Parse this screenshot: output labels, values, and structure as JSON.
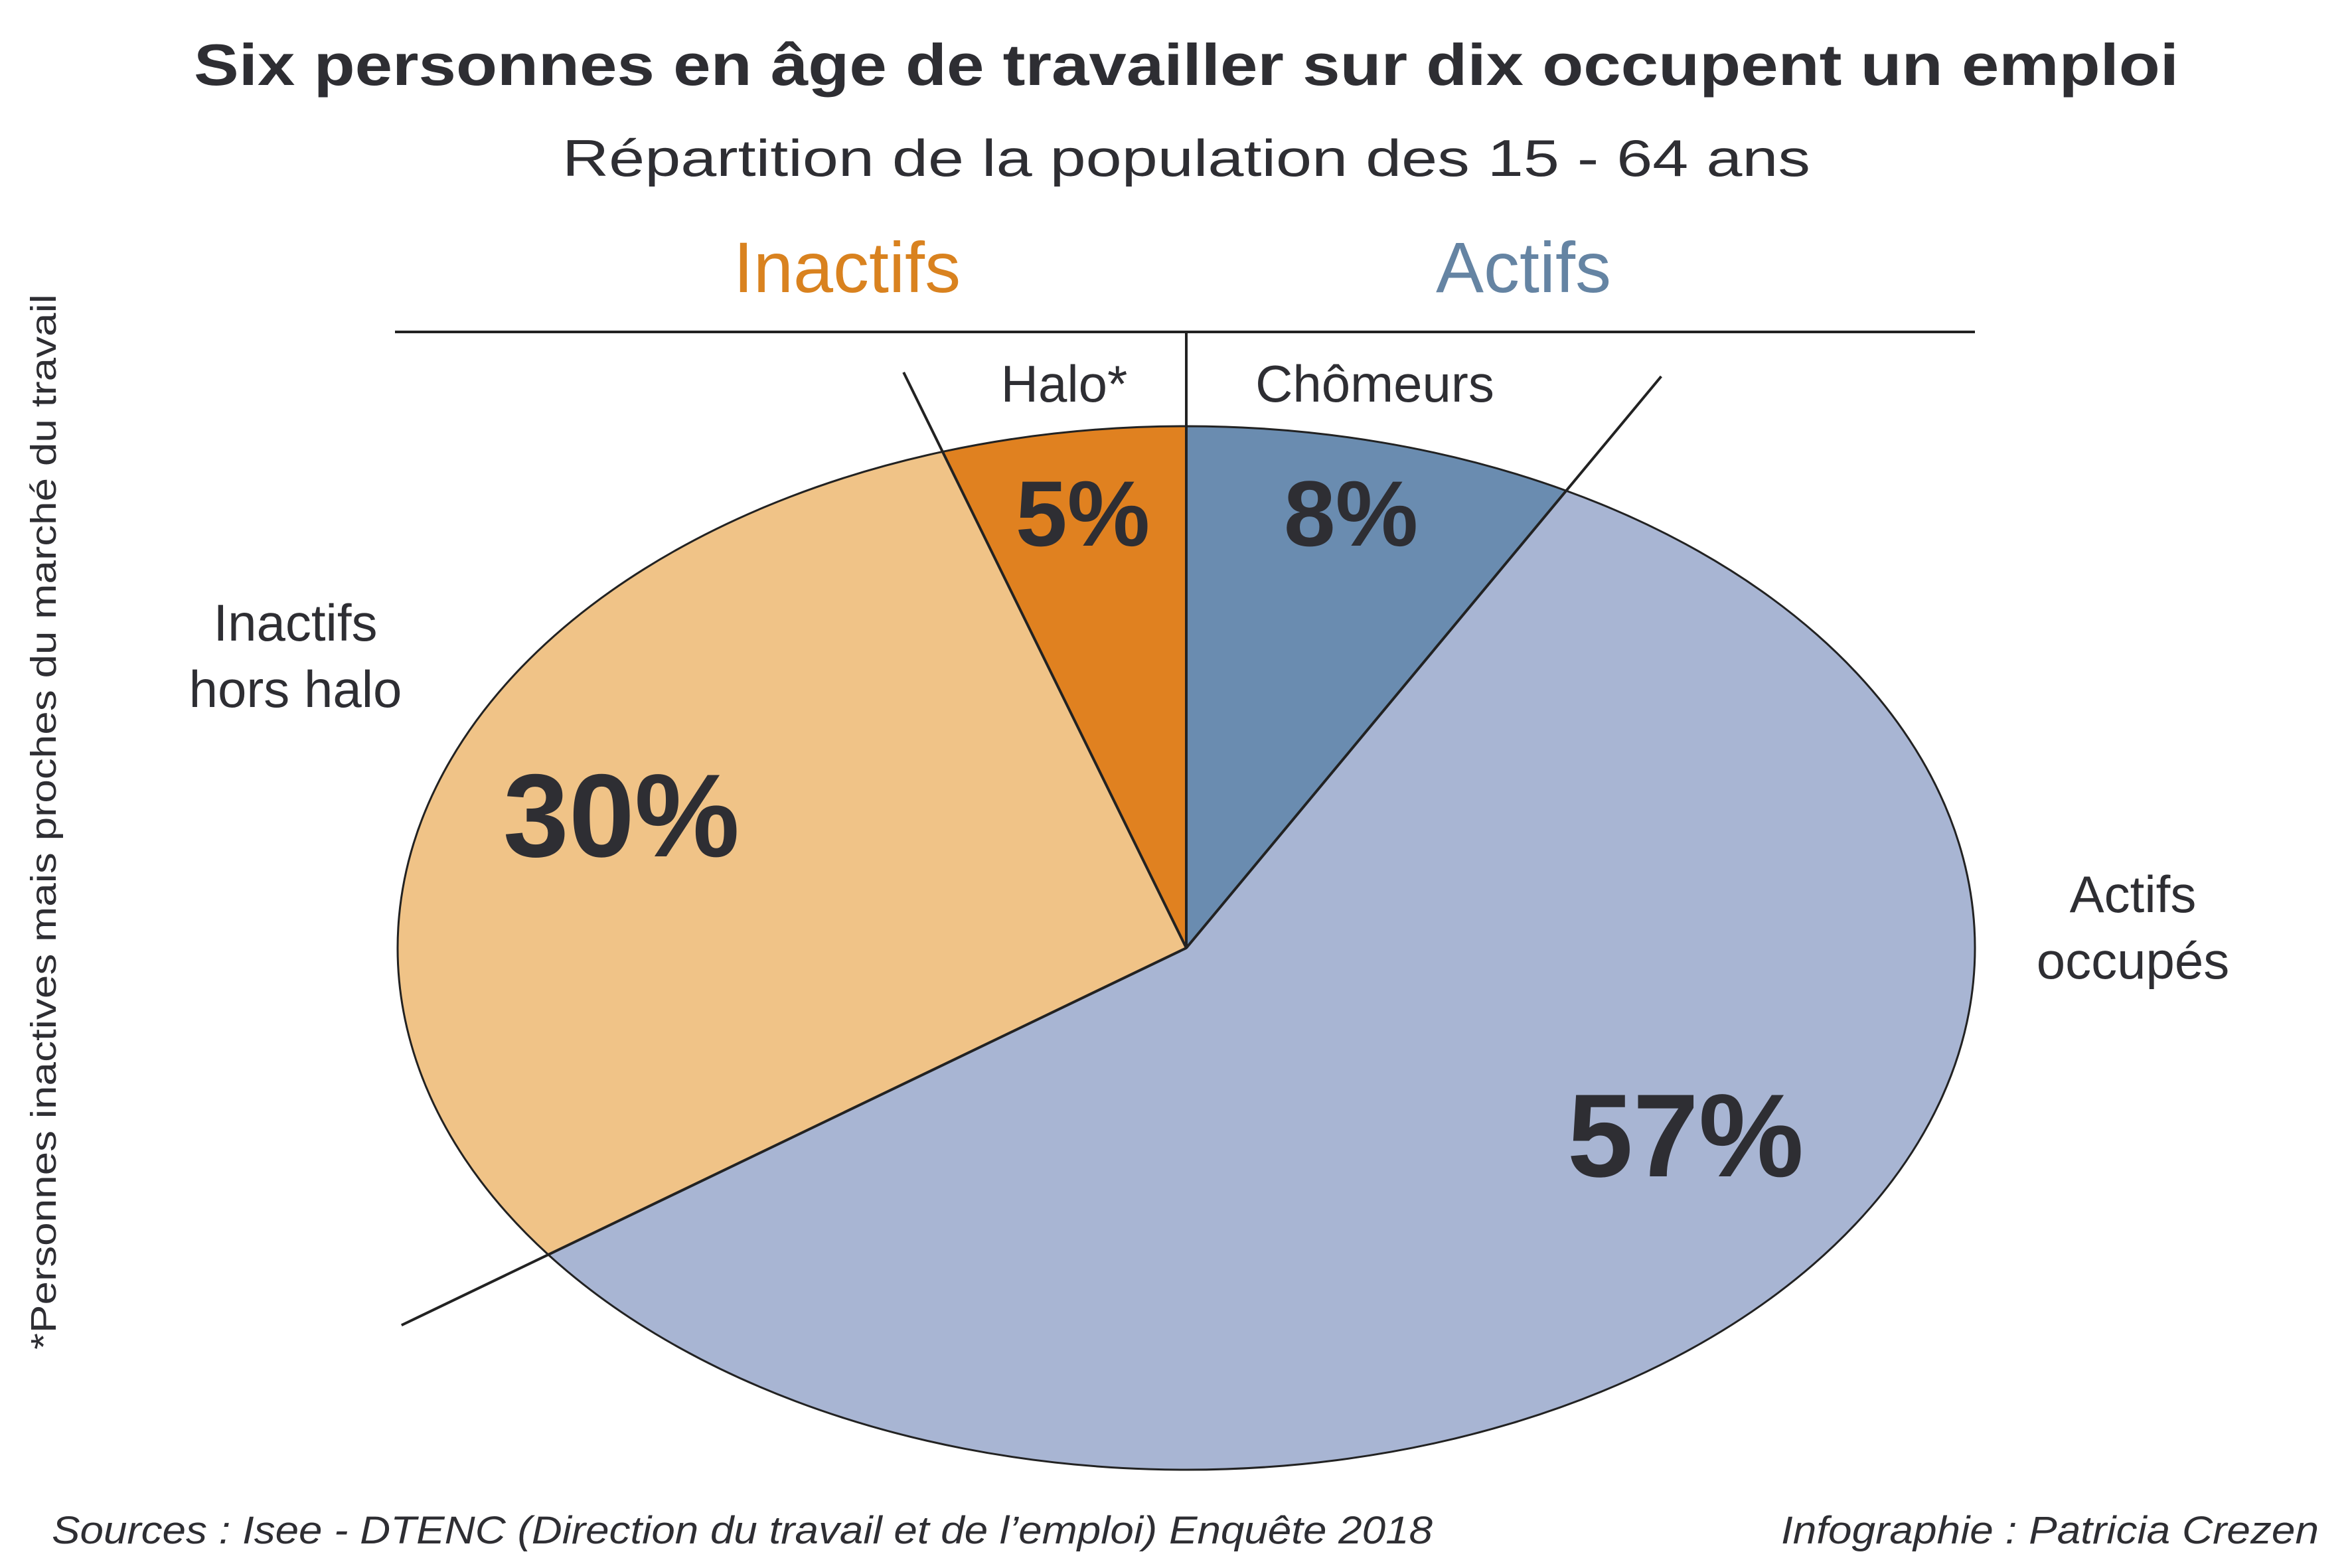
{
  "chart_data": {
    "type": "pie",
    "title": "Six personnes en âge de travailler sur dix occupent un emploi",
    "subtitle": "Répartition de la population des 15 - 64 ans",
    "groups": [
      {
        "name": "Inactifs",
        "color": "#d9821f"
      },
      {
        "name": "Actifs",
        "color": "#6584a3"
      }
    ],
    "slices": [
      {
        "label": "Chômeurs",
        "value": 8,
        "value_label": "8%",
        "group": "Actifs",
        "color": "#6a8cb0"
      },
      {
        "label_lines": [
          "Actifs",
          "occupés"
        ],
        "value": 57,
        "value_label": "57%",
        "group": "Actifs",
        "color": "#a8b5d3"
      },
      {
        "label_lines": [
          "Inactifs",
          "hors halo"
        ],
        "value": 30,
        "value_label": "30%",
        "group": "Inactifs",
        "color": "#f0c387"
      },
      {
        "label": "Halo*",
        "value": 5,
        "value_label": "5%",
        "group": "Inactifs",
        "color": "#e08120"
      }
    ],
    "footnote": "*Personnes inactives mais proches du marché du travail",
    "source": "Sources : Isee - DTENC (Direction du travail et de l’emploi) Enquête 2018",
    "credit": "Infographie : Patricia Crezen"
  }
}
